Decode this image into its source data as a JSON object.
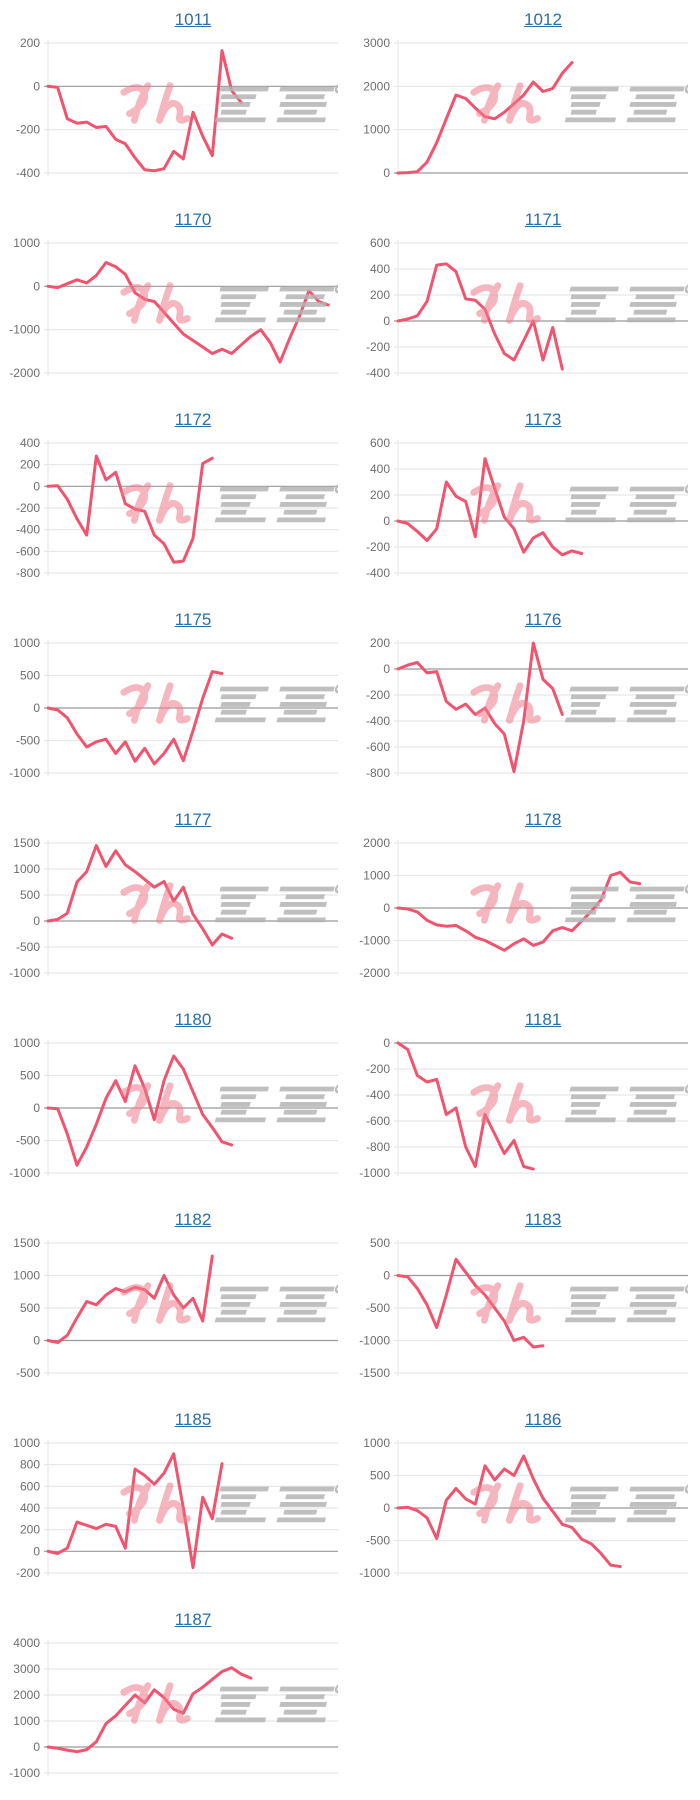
{
  "page": {
    "background": "#ffffff"
  },
  "watermark": {
    "text": "みんレポ",
    "pink_text": "みん",
    "gray_text": "レポ"
  },
  "colors": {
    "series_line": "#f0546e",
    "gridline": "#e6e6e6",
    "zero_line": "#999999",
    "axis_label": "#6e6e6e",
    "title_link": "#2a6fad",
    "watermark_pink": "#f07c8c",
    "watermark_gray": "#b4b4b4"
  },
  "chart_data": [
    {
      "type": "line",
      "title": "1011",
      "ylim": [
        -400,
        200
      ],
      "yticks": [
        200,
        0,
        -200,
        -400
      ],
      "slots": 31,
      "grid": true,
      "legend": "none",
      "values": [
        0,
        -5,
        -150,
        -170,
        -165,
        -190,
        -185,
        -245,
        -265,
        -330,
        -385,
        -390,
        -380,
        -300,
        -335,
        -120,
        -230,
        -320,
        165,
        -20,
        -75
      ]
    },
    {
      "type": "line",
      "title": "1012",
      "ylim": [
        0,
        3000
      ],
      "yticks": [
        3000,
        2000,
        1000,
        0
      ],
      "slots": 31,
      "grid": true,
      "legend": "none",
      "values": [
        0,
        10,
        30,
        250,
        700,
        1250,
        1800,
        1720,
        1500,
        1300,
        1250,
        1400,
        1600,
        1800,
        2100,
        1880,
        1950,
        2300,
        2550
      ]
    },
    {
      "type": "line",
      "title": "1170",
      "ylim": [
        -2000,
        1000
      ],
      "yticks": [
        1000,
        0,
        -1000,
        -2000
      ],
      "slots": 31,
      "grid": true,
      "legend": "none",
      "values": [
        0,
        -30,
        60,
        150,
        80,
        250,
        550,
        450,
        280,
        -150,
        -300,
        -350,
        -600,
        -850,
        -1100,
        -1250,
        -1400,
        -1550,
        -1450,
        -1550,
        -1350,
        -1150,
        -1000,
        -1300,
        -1750,
        -1200,
        -700,
        -100,
        -350,
        -430
      ]
    },
    {
      "type": "line",
      "title": "1171",
      "ylim": [
        -400,
        600
      ],
      "yticks": [
        600,
        400,
        200,
        0,
        -200,
        -400
      ],
      "slots": 31,
      "grid": true,
      "legend": "none",
      "values": [
        0,
        15,
        40,
        150,
        430,
        440,
        380,
        170,
        160,
        90,
        -100,
        -250,
        -300,
        -150,
        0,
        -300,
        -50,
        -370
      ]
    },
    {
      "type": "line",
      "title": "1172",
      "ylim": [
        -800,
        400
      ],
      "yticks": [
        400,
        200,
        0,
        -200,
        -400,
        -600,
        -800
      ],
      "slots": 31,
      "grid": true,
      "legend": "none",
      "values": [
        0,
        5,
        -120,
        -300,
        -450,
        280,
        60,
        130,
        -160,
        -210,
        -230,
        -450,
        -530,
        -700,
        -690,
        -480,
        210,
        260
      ]
    },
    {
      "type": "line",
      "title": "1173",
      "ylim": [
        -400,
        600
      ],
      "yticks": [
        600,
        400,
        200,
        0,
        -200,
        -400
      ],
      "slots": 31,
      "grid": true,
      "legend": "none",
      "values": [
        0,
        -20,
        -80,
        -150,
        -60,
        300,
        190,
        150,
        -120,
        480,
        250,
        30,
        -60,
        -240,
        -130,
        -90,
        -200,
        -260,
        -230,
        -250
      ]
    },
    {
      "type": "line",
      "title": "1175",
      "ylim": [
        -1000,
        1000
      ],
      "yticks": [
        1000,
        500,
        0,
        -500,
        -1000
      ],
      "slots": 31,
      "grid": true,
      "legend": "none",
      "values": [
        0,
        -30,
        -150,
        -400,
        -600,
        -520,
        -480,
        -700,
        -520,
        -820,
        -620,
        -860,
        -700,
        -480,
        -810,
        -350,
        150,
        560,
        530
      ]
    },
    {
      "type": "line",
      "title": "1176",
      "ylim": [
        -800,
        200
      ],
      "yticks": [
        200,
        0,
        -200,
        -400,
        -600,
        -800
      ],
      "slots": 31,
      "grid": true,
      "legend": "none",
      "values": [
        0,
        30,
        50,
        -30,
        -20,
        -250,
        -310,
        -270,
        -350,
        -300,
        -420,
        -500,
        -790,
        -400,
        200,
        -80,
        -150,
        -350
      ]
    },
    {
      "type": "line",
      "title": "1177",
      "ylim": [
        -1000,
        1500
      ],
      "yticks": [
        1500,
        1000,
        500,
        0,
        -500,
        -1000
      ],
      "slots": 31,
      "grid": true,
      "legend": "none",
      "values": [
        0,
        30,
        150,
        750,
        950,
        1450,
        1050,
        1350,
        1080,
        950,
        800,
        650,
        760,
        380,
        650,
        130,
        -150,
        -460,
        -250,
        -330
      ]
    },
    {
      "type": "line",
      "title": "1178",
      "ylim": [
        -2000,
        2000
      ],
      "yticks": [
        2000,
        1000,
        0,
        -1000,
        -2000
      ],
      "slots": 31,
      "grid": true,
      "legend": "none",
      "values": [
        0,
        -30,
        -120,
        -380,
        -520,
        -560,
        -540,
        -700,
        -900,
        -1000,
        -1150,
        -1300,
        -1100,
        -950,
        -1150,
        -1050,
        -700,
        -600,
        -700,
        -400,
        -100,
        250,
        1000,
        1100,
        800,
        750
      ]
    },
    {
      "type": "line",
      "title": "1180",
      "ylim": [
        -1000,
        1000
      ],
      "yticks": [
        1000,
        500,
        0,
        -500,
        -1000
      ],
      "slots": 31,
      "grid": true,
      "legend": "none",
      "values": [
        0,
        -10,
        -400,
        -880,
        -600,
        -250,
        150,
        420,
        100,
        650,
        300,
        -180,
        420,
        800,
        600,
        250,
        -100,
        -300,
        -520,
        -570
      ]
    },
    {
      "type": "line",
      "title": "1181",
      "ylim": [
        -1000,
        0
      ],
      "yticks": [
        0,
        -200,
        -400,
        -600,
        -800,
        -1000
      ],
      "slots": 31,
      "grid": true,
      "legend": "none",
      "values": [
        0,
        -50,
        -250,
        -300,
        -280,
        -550,
        -500,
        -800,
        -950,
        -550,
        -700,
        -850,
        -750,
        -950,
        -970
      ]
    },
    {
      "type": "line",
      "title": "1182",
      "ylim": [
        -500,
        1500
      ],
      "yticks": [
        1500,
        1000,
        500,
        0,
        -500
      ],
      "slots": 31,
      "grid": true,
      "legend": "none",
      "values": [
        0,
        -30,
        80,
        350,
        600,
        550,
        700,
        800,
        750,
        820,
        780,
        650,
        1000,
        700,
        500,
        650,
        300,
        1300
      ]
    },
    {
      "type": "line",
      "title": "1183",
      "ylim": [
        -1500,
        500
      ],
      "yticks": [
        500,
        0,
        -500,
        -1000,
        -1500
      ],
      "slots": 31,
      "grid": true,
      "legend": "none",
      "values": [
        0,
        -20,
        -200,
        -450,
        -800,
        -300,
        250,
        50,
        -150,
        -300,
        -500,
        -700,
        -1000,
        -950,
        -1100,
        -1080
      ]
    },
    {
      "type": "line",
      "title": "1185",
      "ylim": [
        -200,
        1000
      ],
      "yticks": [
        1000,
        800,
        600,
        400,
        200,
        0,
        -200
      ],
      "slots": 31,
      "grid": true,
      "legend": "none",
      "values": [
        0,
        -20,
        30,
        270,
        240,
        210,
        250,
        230,
        30,
        760,
        700,
        620,
        720,
        900,
        400,
        -150,
        500,
        300,
        810
      ]
    },
    {
      "type": "line",
      "title": "1186",
      "ylim": [
        -1000,
        1000
      ],
      "yticks": [
        1000,
        500,
        0,
        -500,
        -1000
      ],
      "slots": 31,
      "grid": true,
      "legend": "none",
      "values": [
        0,
        10,
        -40,
        -150,
        -470,
        120,
        300,
        140,
        60,
        650,
        430,
        600,
        500,
        800,
        450,
        150,
        -50,
        -250,
        -300,
        -480,
        -550,
        -700,
        -880,
        -900
      ]
    },
    {
      "type": "line",
      "title": "1187",
      "ylim": [
        -1000,
        4000
      ],
      "yticks": [
        4000,
        3000,
        2000,
        1000,
        0,
        -1000
      ],
      "slots": 31,
      "grid": true,
      "legend": "none",
      "values": [
        0,
        -50,
        -120,
        -180,
        -100,
        200,
        900,
        1200,
        1600,
        2000,
        1700,
        2200,
        1900,
        1450,
        1300,
        2050,
        2300,
        2600,
        2900,
        3050,
        2800,
        2650
      ]
    }
  ]
}
